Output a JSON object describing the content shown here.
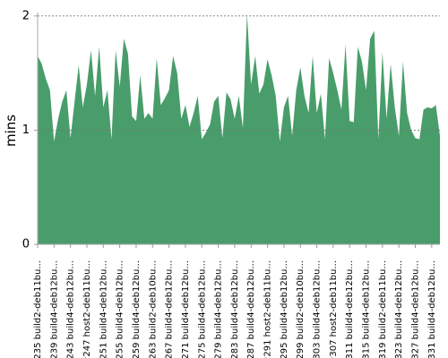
{
  "chart_data": {
    "type": "area",
    "ylabel": "mins",
    "color": "#499d6b",
    "grid": true,
    "ylim": [
      0,
      2.03
    ],
    "yticks": [
      0,
      1,
      2
    ],
    "categories": [
      "#235 build2-deb11bu...",
      null,
      null,
      null,
      "#239 build4-deb12bu...",
      null,
      null,
      null,
      "#243 build4-deb12bu...",
      null,
      null,
      null,
      "#247 host2-deb11bu...",
      null,
      null,
      null,
      "#251 build4-deb12bu...",
      null,
      null,
      null,
      "#255 build4-deb12bu...",
      null,
      null,
      null,
      "#259 build4-deb12bu...",
      null,
      null,
      null,
      "#263 build2-deb10bu...",
      null,
      null,
      null,
      "#267 build4-deb12bu...",
      null,
      null,
      null,
      "#271 build4-deb12bu...",
      null,
      null,
      null,
      "#275 build4-deb12bu...",
      null,
      null,
      null,
      "#279 build4-deb12bu...",
      null,
      null,
      null,
      "#283 build4-deb12bu...",
      null,
      null,
      null,
      "#287 build4-deb12bu...",
      null,
      null,
      null,
      "#291 host2-deb11bu...",
      null,
      null,
      null,
      "#295 build4-deb12bu...",
      null,
      null,
      null,
      "#299 build2-deb10bu...",
      null,
      null,
      null,
      "#303 build4-deb12bu...",
      null,
      null,
      null,
      "#307 host2-deb11bu...",
      null,
      null,
      null,
      "#311 build4-deb12bu...",
      null,
      null,
      null,
      "#315 build4-deb12bu...",
      null,
      null,
      null,
      "#319 build2-deb11bu...",
      null,
      null,
      null,
      "#323 build4-deb12bu...",
      null,
      null,
      null,
      "#327 build4-deb12bu...",
      null,
      null,
      null,
      "#331 build4-deb12bu...",
      null,
      null
    ],
    "values": [
      1.65,
      1.58,
      1.45,
      1.35,
      0.9,
      1.1,
      1.25,
      1.35,
      0.93,
      1.25,
      1.57,
      1.2,
      1.4,
      1.7,
      1.3,
      1.73,
      1.2,
      1.35,
      0.92,
      1.7,
      1.38,
      1.8,
      1.67,
      1.12,
      1.08,
      1.48,
      1.1,
      1.15,
      1.1,
      1.63,
      1.22,
      1.28,
      1.35,
      1.65,
      1.5,
      1.1,
      1.22,
      1.03,
      1.15,
      1.3,
      0.92,
      0.98,
      1.05,
      1.25,
      1.3,
      0.93,
      1.33,
      1.27,
      1.1,
      1.3,
      1.02,
      2.02,
      1.4,
      1.65,
      1.32,
      1.4,
      1.62,
      1.48,
      1.3,
      0.9,
      1.2,
      1.3,
      0.95,
      1.35,
      1.55,
      1.3,
      1.15,
      1.65,
      1.15,
      1.32,
      0.92,
      1.63,
      1.5,
      1.35,
      1.18,
      1.75,
      1.08,
      1.07,
      1.73,
      1.6,
      1.35,
      1.8,
      1.87,
      0.92,
      1.68,
      1.1,
      1.58,
      1.2,
      0.95,
      1.6,
      1.15,
      1.0,
      0.93,
      0.92,
      1.18,
      1.2,
      1.19,
      1.22,
      0.95
    ]
  }
}
